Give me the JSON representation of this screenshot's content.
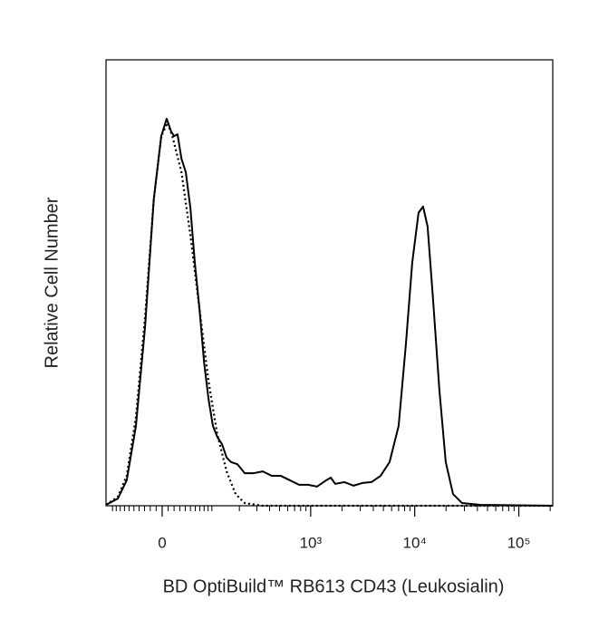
{
  "chart_data": {
    "type": "line",
    "x_label": "BD OptiBuild™ RB613 CD43 (Leukosialin)",
    "y_label": "Relative Cell Number",
    "xscale": {
      "type": "asinh",
      "cofactor": 75
    },
    "xlim": [
      -119,
      211800
    ],
    "ylim": [
      0,
      100
    ],
    "xticks": [
      0,
      {
        "value": 1000,
        "label": "10³"
      },
      {
        "value": 10000,
        "label": "10⁴"
      },
      {
        "value": 100000,
        "label": "10⁵"
      }
    ],
    "xminorticks": [
      -100,
      -90,
      -80,
      -70,
      -60,
      -50,
      -40,
      -30,
      -20,
      -10,
      10,
      20,
      30,
      40,
      50,
      60,
      70,
      80,
      90,
      100,
      200,
      300,
      400,
      500,
      600,
      700,
      800,
      900,
      2000,
      3000,
      4000,
      5000,
      6000,
      7000,
      8000,
      9000,
      20000,
      30000,
      40000,
      50000,
      60000,
      70000,
      80000,
      90000,
      200000
    ],
    "series": [
      {
        "style": "solid",
        "color": "#000000",
        "x": [
          -119,
          -86,
          -65,
          -46,
          -29,
          -14,
          -1.5,
          7.5,
          15,
          20,
          26,
          33,
          41,
          50,
          59,
          69,
          80,
          91,
          103,
          116,
          131,
          147,
          164,
          191,
          227,
          279,
          343,
          421,
          515,
          631,
          772,
          944,
          1154,
          1410,
          1560,
          1724,
          2107,
          2575,
          3145,
          3842,
          4694,
          5735,
          7006,
          8225,
          9464,
          10885,
          12030,
          13298,
          15000,
          17250,
          19860,
          23350,
          28520,
          42540,
          211800
        ],
        "values": [
          0.2,
          1.6,
          5.7,
          17.9,
          40.2,
          68.7,
          82.9,
          86.8,
          83.9,
          82.9,
          83.3,
          77.8,
          74.8,
          66.7,
          54.5,
          44.3,
          32.1,
          24.0,
          17.9,
          15.4,
          13.8,
          10.8,
          9.8,
          9.3,
          7.3,
          7.3,
          7.7,
          6.7,
          6.7,
          5.7,
          4.7,
          4.7,
          4.3,
          5.7,
          6.3,
          4.9,
          5.3,
          4.5,
          5.1,
          5.3,
          6.7,
          9.8,
          17.9,
          36.2,
          54.5,
          65.7,
          67.1,
          62.6,
          46.3,
          26.0,
          9.8,
          2.6,
          0.6,
          0.2,
          0
        ]
      },
      {
        "style": "dotted",
        "color": "#000000",
        "x": [
          -119,
          -86,
          -65,
          -46,
          -29,
          -14,
          -1.5,
          9,
          17,
          33,
          50,
          69,
          91,
          116,
          147,
          183,
          227,
          343,
          211800
        ],
        "values": [
          0.2,
          2.0,
          6.7,
          19.9,
          42.3,
          68.7,
          82.9,
          85.9,
          82.9,
          74.8,
          60.6,
          44.3,
          28.0,
          15.9,
          7.7,
          2.6,
          0.6,
          0,
          0
        ]
      }
    ]
  }
}
